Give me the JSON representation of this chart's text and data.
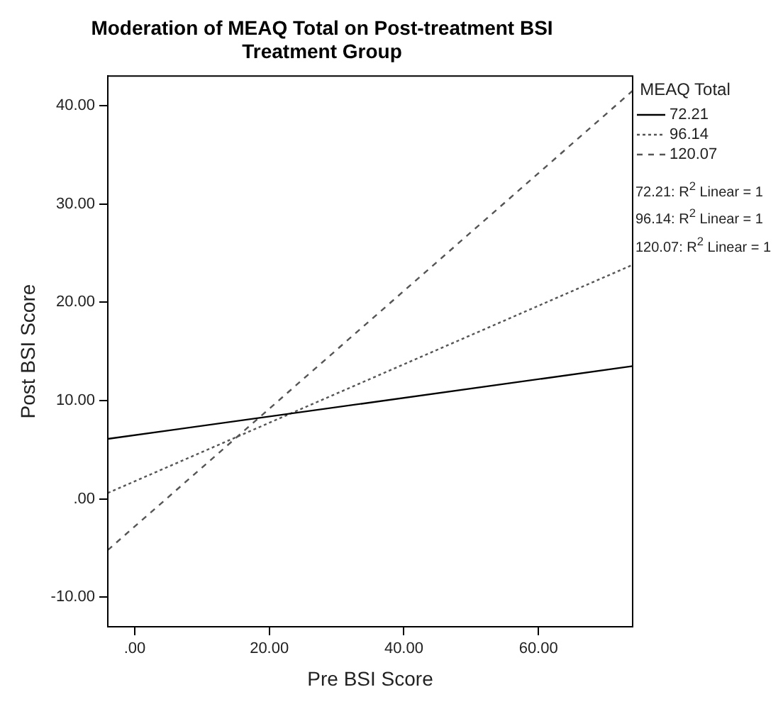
{
  "chart_data": {
    "type": "line",
    "title": "Moderation of MEAQ Total on Post-treatment BSI\nTreatment Group",
    "xlabel": "Pre BSI Score",
    "ylabel": "Post BSI Score",
    "legend_title": "MEAQ Total",
    "legend": "right",
    "grid": false,
    "marker": "none",
    "xlim": [
      -4,
      74
    ],
    "x": [
      -4,
      74
    ],
    "xticks": [
      {
        "value": 0,
        "label": ".00"
      },
      {
        "value": 20,
        "label": "20.00"
      },
      {
        "value": 40,
        "label": "40.00"
      },
      {
        "value": 60,
        "label": "60.00"
      }
    ],
    "ylim": [
      -13,
      43
    ],
    "yticks": [
      {
        "value": -10,
        "label": "-10.00"
      },
      {
        "value": 0,
        "label": ".00"
      },
      {
        "value": 10,
        "label": "10.00"
      },
      {
        "value": 20,
        "label": "20.00"
      },
      {
        "value": 30,
        "label": "30.00"
      },
      {
        "value": 40,
        "label": "40.00"
      }
    ],
    "series": [
      {
        "name": "72.21",
        "color": "#000000",
        "line_style": "solid",
        "values": [
          6.1,
          13.5
        ]
      },
      {
        "name": "96.14",
        "color": "#555555",
        "line_style": "dotted",
        "values": [
          0.6,
          23.8
        ]
      },
      {
        "name": "120.07",
        "color": "#555555",
        "line_style": "dashed",
        "values": [
          -5.2,
          41.5
        ]
      }
    ],
    "annotations": [
      "72.21: R$^{2}$ Linear = 1",
      "96.14: R$^{2}$ Linear = 1",
      "120.07: R$^{2}$ Linear = 1"
    ]
  }
}
